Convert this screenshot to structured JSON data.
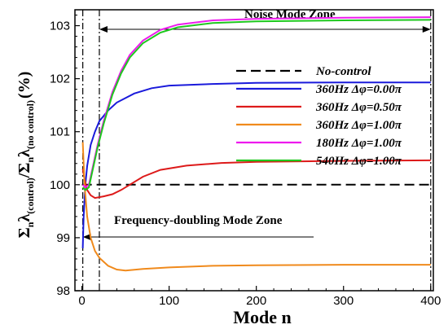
{
  "chart_data": {
    "type": "line",
    "xlabel": "Mode n",
    "ylabel_parts": {
      "sigma1": "Σ",
      "sub_n1": "n",
      "lambda1": "λ",
      "sub_control": "(control)",
      "slash": "/",
      "sigma2": "Σ",
      "sub_n2": "n",
      "lambda2": "λ",
      "sub_nocontrol": "(no control)",
      "unit": "(%)"
    },
    "xlim": [
      -8,
      403
    ],
    "ylim": [
      98,
      103.3
    ],
    "xticks": [
      0,
      100,
      200,
      300,
      400
    ],
    "yticks": [
      98,
      99,
      100,
      101,
      102,
      103
    ],
    "annotations": {
      "noise_zone": "Noise Mode Zone",
      "doubling_zone": "Frequency-doubling Mode Zone"
    },
    "series": [
      {
        "name": "No-control",
        "color": "#000000",
        "dash": "dashed",
        "points": [
          [
            0,
            100
          ],
          [
            400,
            100
          ]
        ]
      },
      {
        "name": "360Hz Δφ=0.00π",
        "color": "#1a1adb",
        "dash": "solid",
        "points": [
          [
            1,
            98.8
          ],
          [
            2,
            99.4
          ],
          [
            4,
            100.0
          ],
          [
            6,
            100.35
          ],
          [
            10,
            100.75
          ],
          [
            15,
            101.0
          ],
          [
            20,
            101.2
          ],
          [
            30,
            101.4
          ],
          [
            40,
            101.55
          ],
          [
            60,
            101.72
          ],
          [
            80,
            101.82
          ],
          [
            100,
            101.87
          ],
          [
            150,
            101.9
          ],
          [
            200,
            101.92
          ],
          [
            300,
            101.93
          ],
          [
            400,
            101.93
          ]
        ]
      },
      {
        "name": "360Hz Δφ=0.50π",
        "color": "#dd1a1a",
        "dash": "solid",
        "points": [
          [
            1,
            100.3
          ],
          [
            3,
            100.1
          ],
          [
            6,
            99.9
          ],
          [
            10,
            99.8
          ],
          [
            15,
            99.75
          ],
          [
            25,
            99.78
          ],
          [
            35,
            99.82
          ],
          [
            45,
            99.9
          ],
          [
            55,
            100.0
          ],
          [
            70,
            100.15
          ],
          [
            90,
            100.28
          ],
          [
            120,
            100.36
          ],
          [
            160,
            100.41
          ],
          [
            200,
            100.43
          ],
          [
            300,
            100.45
          ],
          [
            400,
            100.46
          ]
        ]
      },
      {
        "name": "360Hz Δφ=1.00π",
        "color": "#f08a1c",
        "dash": "solid",
        "points": [
          [
            1,
            100.8
          ],
          [
            3,
            100.0
          ],
          [
            6,
            99.4
          ],
          [
            10,
            99.0
          ],
          [
            15,
            98.75
          ],
          [
            20,
            98.62
          ],
          [
            30,
            98.47
          ],
          [
            40,
            98.4
          ],
          [
            50,
            98.38
          ],
          [
            70,
            98.41
          ],
          [
            100,
            98.44
          ],
          [
            150,
            98.47
          ],
          [
            200,
            98.48
          ],
          [
            300,
            98.49
          ],
          [
            400,
            98.49
          ]
        ]
      },
      {
        "name": "180Hz Δφ=1.00π",
        "color": "#ee1aee",
        "dash": "solid",
        "points": [
          [
            1,
            100.0
          ],
          [
            4,
            99.95
          ],
          [
            8,
            100.0
          ],
          [
            12,
            100.3
          ],
          [
            18,
            100.75
          ],
          [
            25,
            101.2
          ],
          [
            35,
            101.75
          ],
          [
            45,
            102.15
          ],
          [
            55,
            102.45
          ],
          [
            70,
            102.72
          ],
          [
            90,
            102.92
          ],
          [
            110,
            103.02
          ],
          [
            150,
            103.1
          ],
          [
            200,
            103.13
          ],
          [
            300,
            103.15
          ],
          [
            400,
            103.16
          ]
        ]
      },
      {
        "name": "540Hz Δφ=1.00π",
        "color": "#1ec81e",
        "dash": "solid",
        "points": [
          [
            1,
            99.95
          ],
          [
            4,
            99.9
          ],
          [
            8,
            99.95
          ],
          [
            12,
            100.25
          ],
          [
            18,
            100.7
          ],
          [
            25,
            101.15
          ],
          [
            35,
            101.7
          ],
          [
            45,
            102.1
          ],
          [
            55,
            102.4
          ],
          [
            70,
            102.67
          ],
          [
            90,
            102.87
          ],
          [
            110,
            102.97
          ],
          [
            150,
            103.05
          ],
          [
            200,
            103.08
          ],
          [
            300,
            103.1
          ],
          [
            400,
            103.11
          ]
        ]
      }
    ]
  }
}
